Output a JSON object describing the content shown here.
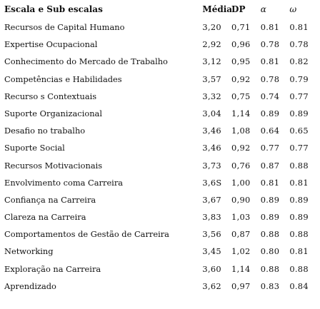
{
  "table": {
    "headers": {
      "name": "Escala e Sub escalas",
      "mean": "Média",
      "dp": "DP",
      "alpha": "α",
      "omega": "ω"
    },
    "rows": [
      {
        "name": "Recursos de Capital Humano",
        "mean": "3,20",
        "dp": "0,71",
        "alpha": "0.81",
        "omega": "0.81"
      },
      {
        "name": "Expertise Ocupacional",
        "mean": "2,92",
        "dp": "0,96",
        "alpha": "0.78",
        "omega": "0.78"
      },
      {
        "name": "Conhecimento do Mercado de Trabalho",
        "mean": "3,12",
        "dp": "0,95",
        "alpha": "0.81",
        "omega": "0.82"
      },
      {
        "name": "Competências e Habilidades",
        "mean": "3,57",
        "dp": "0,92",
        "alpha": "0.78",
        "omega": "0.79"
      },
      {
        "name": "Recurso s Contextuais",
        "mean": "3,32",
        "dp": "0,75",
        "alpha": "0.74",
        "omega": "0.77"
      },
      {
        "name": "Suporte Organizacional",
        "mean": "3,04",
        "dp": "1,14",
        "alpha": "0.89",
        "omega": "0.89"
      },
      {
        "name": "Desafio no trabalho",
        "mean": "3,46",
        "dp": "1,08",
        "alpha": "0.64",
        "omega": "0.65"
      },
      {
        "name": "Suporte Social",
        "mean": "3,46",
        "dp": "0,92",
        "alpha": "0.77",
        "omega": "0.77"
      },
      {
        "name": "Recursos Motivacionais",
        "mean": "3,73",
        "dp": "0,76",
        "alpha": "0.87",
        "omega": "0.88"
      },
      {
        "name": "Envolvimento coma Carreira",
        "mean": "3,6S",
        "dp": "1,00",
        "alpha": "0.81",
        "omega": "0.81"
      },
      {
        "name": "Confiança na Carreira",
        "mean": "3,67",
        "dp": "0,90",
        "alpha": "0.89",
        "omega": "0.89"
      },
      {
        "name": "Clareza na Carreira",
        "mean": "3,83",
        "dp": "1,03",
        "alpha": "0.89",
        "omega": "0.89"
      },
      {
        "name": "Comportamentos de Gestão de Carreira",
        "mean": "3,56",
        "dp": "0,87",
        "alpha": "0.88",
        "omega": "0.88"
      },
      {
        "name": "Networking",
        "mean": "3,45",
        "dp": "1,02",
        "alpha": "0.80",
        "omega": "0.81"
      },
      {
        "name": "Exploração na Carreira",
        "mean": "3,60",
        "dp": "1,14",
        "alpha": "0.88",
        "omega": "0.88"
      },
      {
        "name": "Aprendizado",
        "mean": "3,62",
        "dp": "0,97",
        "alpha": "0.83",
        "omega": "0.84"
      }
    ]
  }
}
